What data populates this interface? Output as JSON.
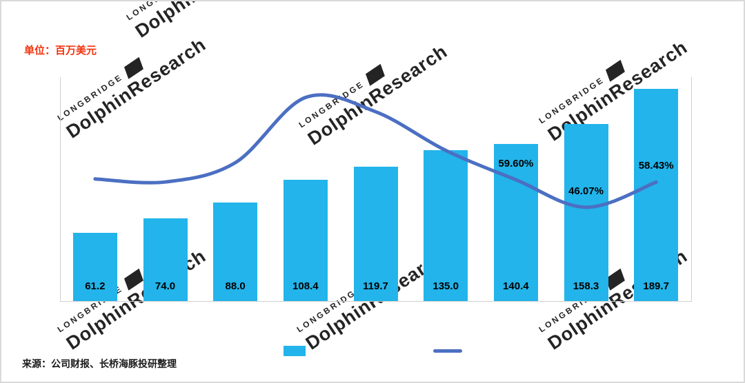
{
  "page": {
    "unit_label": "单位：百万美元",
    "source_label": "来源：公司财报、长桥海豚投研整理"
  },
  "watermark": {
    "line1": "LONGBRIDGE",
    "line2": "DolphinResearch"
  },
  "colors": {
    "bar": "#22B4EA",
    "line": "#4B6FC2",
    "unit_text": "#F4320C",
    "axis": "#CFCFCF",
    "label_text": "#000000"
  },
  "chart_data": {
    "type": "combo",
    "categories": [
      "",
      "",
      "",
      "",
      "",
      "",
      "",
      "",
      ""
    ],
    "series": [
      {
        "name": "revenue-bars",
        "type": "bar",
        "values": [
          61.2,
          74.0,
          88.0,
          108.4,
          119.7,
          135.0,
          140.4,
          158.3,
          189.7
        ],
        "labels": [
          "61.2",
          "74.0",
          "88.0",
          "108.4",
          "119.7",
          "135.0",
          "140.4",
          "158.3",
          "189.7"
        ]
      },
      {
        "name": "yoy-growth-line",
        "type": "line",
        "values": [
          60,
          58.5,
          68,
          100,
          93,
          74,
          59.6,
          46.07,
          58.43
        ],
        "labels": [
          null,
          null,
          null,
          null,
          null,
          null,
          "59.60%",
          "46.07%",
          "58.43%"
        ]
      }
    ],
    "left_axis": {
      "min": 0,
      "max": 200
    },
    "right_axis": {
      "min": 0,
      "max": 110
    },
    "grid": false,
    "legend_position": "bottom",
    "title": "",
    "xlabel": "",
    "ylabel": "单位：百万美元"
  }
}
